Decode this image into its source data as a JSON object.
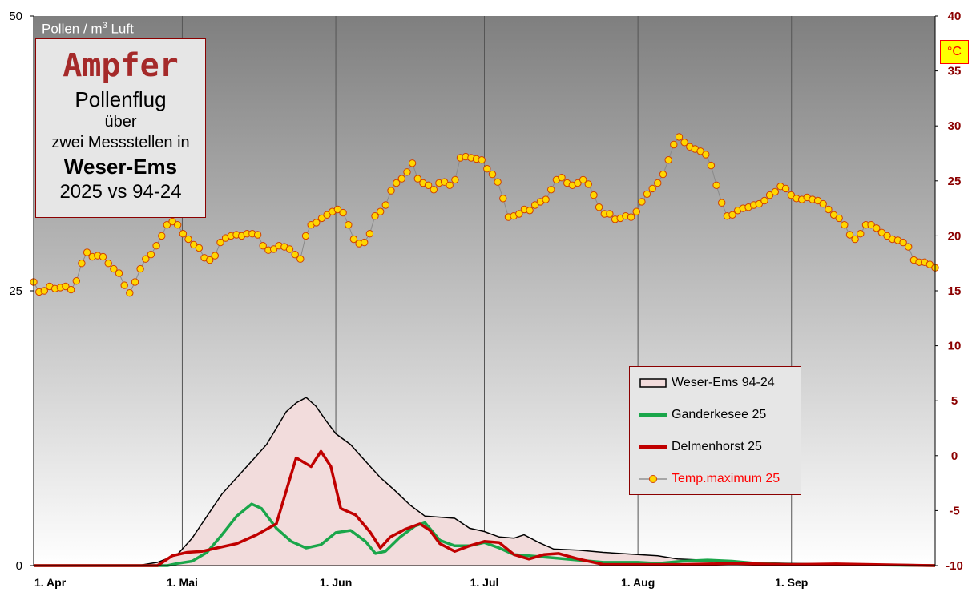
{
  "title_box": {
    "line1": "Ampfer",
    "line2": "Pollenflug",
    "line3": "über",
    "line4": "zwei Messstellen in",
    "line5": "Weser-Ems",
    "line6": "2025 vs 94-24"
  },
  "unit_label": {
    "text": "Pollen / m",
    "sup": "3",
    "suffix": " Luft"
  },
  "celsius_label": "°C",
  "colors": {
    "avg_fill": "#f2dcdc",
    "avg_line": "#000000",
    "ganderkesee": "#1aa64a",
    "delmenhorst": "#c00000",
    "temp_marker_fill": "#ffd700",
    "temp_marker_stroke": "#d04000",
    "temp_text": "#ff0000",
    "right_axis_text": "#8b0000"
  },
  "chart_data": {
    "type": "area",
    "x_start": "2025-04-01",
    "x_end": "2025-09-30",
    "x_ticks": [
      {
        "label": "1. Apr",
        "date": "2025-04-01"
      },
      {
        "label": "1. Mai",
        "date": "2025-05-01"
      },
      {
        "label": "1. Jun",
        "date": "2025-06-01"
      },
      {
        "label": "1. Jul",
        "date": "2025-07-01"
      },
      {
        "label": "1. Aug",
        "date": "2025-08-01"
      },
      {
        "label": "1. Sep",
        "date": "2025-09-01"
      }
    ],
    "y_left": {
      "range": [
        0,
        50
      ],
      "ticks": [
        "0",
        "25",
        "50"
      ]
    },
    "y_right": {
      "range": [
        -10,
        40
      ],
      "ticks": [
        "-10",
        "-5",
        "0",
        "5",
        "10",
        "15",
        "20",
        "25",
        "30",
        "35",
        "40"
      ]
    },
    "grid": "vertical at month starts",
    "legend_position": "lower-right",
    "series": [
      {
        "name": "Weser-Ems 94-24",
        "kind": "area",
        "axis": "left",
        "points": [
          [
            "2025-04-01",
            0
          ],
          [
            "2025-04-22",
            0
          ],
          [
            "2025-04-26",
            0.3
          ],
          [
            "2025-04-30",
            1
          ],
          [
            "2025-05-03",
            2.5
          ],
          [
            "2025-05-06",
            4.5
          ],
          [
            "2025-05-09",
            6.5
          ],
          [
            "2025-05-12",
            8
          ],
          [
            "2025-05-15",
            9.5
          ],
          [
            "2025-05-18",
            11
          ],
          [
            "2025-05-20",
            12.5
          ],
          [
            "2025-05-22",
            14
          ],
          [
            "2025-05-24",
            14.8
          ],
          [
            "2025-05-26",
            15.3
          ],
          [
            "2025-05-28",
            14.5
          ],
          [
            "2025-05-30",
            13.2
          ],
          [
            "2025-06-01",
            12
          ],
          [
            "2025-06-04",
            11
          ],
          [
            "2025-06-07",
            9.5
          ],
          [
            "2025-06-10",
            8
          ],
          [
            "2025-06-13",
            6.8
          ],
          [
            "2025-06-16",
            5.5
          ],
          [
            "2025-06-19",
            4.5
          ],
          [
            "2025-06-22",
            4.4
          ],
          [
            "2025-06-25",
            4.3
          ],
          [
            "2025-06-28",
            3.4
          ],
          [
            "2025-07-01",
            3.1
          ],
          [
            "2025-07-04",
            2.6
          ],
          [
            "2025-07-07",
            2.5
          ],
          [
            "2025-07-09",
            2.8
          ],
          [
            "2025-07-12",
            2.1
          ],
          [
            "2025-07-15",
            1.5
          ],
          [
            "2025-07-20",
            1.4
          ],
          [
            "2025-07-25",
            1.2
          ],
          [
            "2025-08-01",
            1.0
          ],
          [
            "2025-08-05",
            0.9
          ],
          [
            "2025-08-09",
            0.6
          ],
          [
            "2025-08-14",
            0.5
          ],
          [
            "2025-08-20",
            0.3
          ],
          [
            "2025-09-01",
            0.2
          ],
          [
            "2025-09-15",
            0.1
          ],
          [
            "2025-09-30",
            0.05
          ]
        ]
      },
      {
        "name": "Ganderkesee 25",
        "kind": "line",
        "axis": "left",
        "points": [
          [
            "2025-04-01",
            0
          ],
          [
            "2025-04-28",
            0
          ],
          [
            "2025-04-30",
            0.2
          ],
          [
            "2025-05-03",
            0.4
          ],
          [
            "2025-05-06",
            1.2
          ],
          [
            "2025-05-09",
            2.8
          ],
          [
            "2025-05-12",
            4.5
          ],
          [
            "2025-05-15",
            5.6
          ],
          [
            "2025-05-17",
            5.2
          ],
          [
            "2025-05-20",
            3.4
          ],
          [
            "2025-05-23",
            2.2
          ],
          [
            "2025-05-26",
            1.6
          ],
          [
            "2025-05-29",
            1.9
          ],
          [
            "2025-06-01",
            3.0
          ],
          [
            "2025-06-04",
            3.2
          ],
          [
            "2025-06-07",
            2.2
          ],
          [
            "2025-06-09",
            1.1
          ],
          [
            "2025-06-11",
            1.3
          ],
          [
            "2025-06-14",
            2.6
          ],
          [
            "2025-06-17",
            3.6
          ],
          [
            "2025-06-19",
            3.9
          ],
          [
            "2025-06-22",
            2.3
          ],
          [
            "2025-06-25",
            1.8
          ],
          [
            "2025-06-28",
            1.8
          ],
          [
            "2025-07-01",
            2.1
          ],
          [
            "2025-07-04",
            1.6
          ],
          [
            "2025-07-07",
            1.0
          ],
          [
            "2025-07-10",
            0.9
          ],
          [
            "2025-07-15",
            0.7
          ],
          [
            "2025-07-20",
            0.5
          ],
          [
            "2025-07-25",
            0.3
          ],
          [
            "2025-08-01",
            0.3
          ],
          [
            "2025-08-05",
            0.2
          ],
          [
            "2025-08-10",
            0.4
          ],
          [
            "2025-08-15",
            0.5
          ],
          [
            "2025-08-20",
            0.4
          ],
          [
            "2025-08-25",
            0.2
          ],
          [
            "2025-09-01",
            0.1
          ],
          [
            "2025-09-10",
            0.1
          ],
          [
            "2025-09-30",
            0
          ]
        ]
      },
      {
        "name": "Delmenhorst 25",
        "kind": "line",
        "axis": "left",
        "points": [
          [
            "2025-04-01",
            0
          ],
          [
            "2025-04-26",
            0
          ],
          [
            "2025-04-29",
            0.9
          ],
          [
            "2025-05-02",
            1.2
          ],
          [
            "2025-05-05",
            1.3
          ],
          [
            "2025-05-08",
            1.6
          ],
          [
            "2025-05-12",
            2.0
          ],
          [
            "2025-05-16",
            2.8
          ],
          [
            "2025-05-20",
            3.8
          ],
          [
            "2025-05-22",
            6.8
          ],
          [
            "2025-05-24",
            9.8
          ],
          [
            "2025-05-27",
            9.0
          ],
          [
            "2025-05-29",
            10.4
          ],
          [
            "2025-05-31",
            9.0
          ],
          [
            "2025-06-02",
            5.2
          ],
          [
            "2025-06-05",
            4.6
          ],
          [
            "2025-06-08",
            3.0
          ],
          [
            "2025-06-10",
            1.6
          ],
          [
            "2025-06-12",
            2.6
          ],
          [
            "2025-06-15",
            3.3
          ],
          [
            "2025-06-18",
            3.8
          ],
          [
            "2025-06-20",
            3.2
          ],
          [
            "2025-06-22",
            2.0
          ],
          [
            "2025-06-25",
            1.3
          ],
          [
            "2025-06-28",
            1.8
          ],
          [
            "2025-07-01",
            2.2
          ],
          [
            "2025-07-04",
            2.1
          ],
          [
            "2025-07-07",
            1.0
          ],
          [
            "2025-07-10",
            0.6
          ],
          [
            "2025-07-13",
            1.0
          ],
          [
            "2025-07-16",
            1.1
          ],
          [
            "2025-07-20",
            0.6
          ],
          [
            "2025-07-25",
            0.1
          ],
          [
            "2025-08-01",
            0.1
          ],
          [
            "2025-08-10",
            0.1
          ],
          [
            "2025-08-20",
            0.2
          ],
          [
            "2025-09-01",
            0.1
          ],
          [
            "2025-09-10",
            0.15
          ],
          [
            "2025-09-30",
            0
          ]
        ]
      },
      {
        "name": "Temp.maximum 25",
        "kind": "line-markers",
        "axis": "right",
        "values": [
          15.8,
          14.9,
          15,
          15.4,
          15.2,
          15.3,
          15.4,
          15.1,
          15.9,
          17.5,
          18.5,
          18.1,
          18.2,
          18.1,
          17.5,
          17,
          16.6,
          15.5,
          14.8,
          15.8,
          17,
          17.9,
          18.3,
          19.1,
          20,
          21,
          21.3,
          21,
          20.2,
          19.7,
          19.2,
          18.9,
          18,
          17.8,
          18.2,
          19.4,
          19.8,
          20,
          20.1,
          20,
          20.2,
          20.2,
          20.1,
          19.1,
          18.7,
          18.8,
          19.1,
          19,
          18.8,
          18.3,
          17.9,
          20,
          21,
          21.2,
          21.6,
          21.9,
          22.2,
          22.4,
          22.1,
          21,
          19.7,
          19.3,
          19.4,
          20.2,
          21.8,
          22.2,
          22.8,
          24.1,
          24.8,
          25.2,
          25.8,
          26.6,
          25.2,
          24.8,
          24.6,
          24.2,
          24.8,
          24.9,
          24.6,
          25.1,
          27.1,
          27.2,
          27.1,
          27,
          26.9,
          26.1,
          25.6,
          24.9,
          23.4,
          21.7,
          21.8,
          22,
          22.4,
          22.3,
          22.8,
          23.1,
          23.3,
          24.2,
          25.1,
          25.3,
          24.8,
          24.6,
          24.8,
          25.1,
          24.7,
          23.7,
          22.6,
          22,
          22,
          21.5,
          21.6,
          21.8,
          21.7,
          22.2,
          23.1,
          23.8,
          24.3,
          24.8,
          25.6,
          26.9,
          28.3,
          29,
          28.5,
          28.1,
          27.9,
          27.7,
          27.4,
          26.4,
          24.6,
          23,
          21.8,
          21.9,
          22.3,
          22.5,
          22.6,
          22.8,
          22.9,
          23.2,
          23.7,
          24,
          24.5,
          24.3,
          23.7,
          23.4,
          23.3,
          23.5,
          23.3,
          23.2,
          22.9,
          22.4,
          21.9,
          21.6,
          21,
          20.1,
          19.7,
          20.2,
          21,
          21,
          20.7,
          20.3,
          20,
          19.7,
          19.6,
          19.4,
          19,
          17.8,
          17.6,
          17.6,
          17.4,
          17.1
        ]
      }
    ]
  },
  "legend": {
    "items": [
      {
        "label": "Weser-Ems 94-24",
        "key": "avg"
      },
      {
        "label": "Ganderkesee 25",
        "key": "gan"
      },
      {
        "label": "Delmenhorst 25",
        "key": "del"
      },
      {
        "label": "Temp.maximum 25",
        "key": "temp"
      }
    ]
  }
}
